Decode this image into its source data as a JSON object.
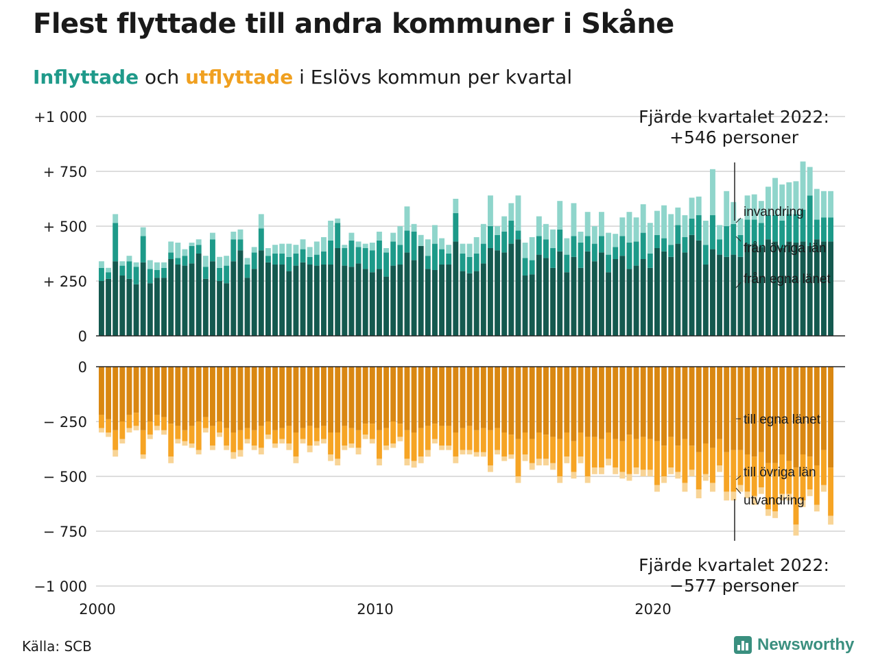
{
  "title": "Flest flyttade till andra kommuner i Skåne",
  "subtitle": {
    "in_word": "Inflyttade",
    "mid_word": "och",
    "out_word": "utflyttade",
    "rest": "i Eslövs kommun per kvartal"
  },
  "annotations": {
    "top_line1": "Fjärde kvartalet 2022:",
    "top_line2": "+546 personer",
    "bottom_line1": "Fjärde kvartalet 2022:",
    "bottom_line2": "−577 personer"
  },
  "source": "Källa: SCB",
  "logo": {
    "text": "Newsworthy",
    "icon": "newsworthy-chat-chart-icon"
  },
  "colors": {
    "in_egna": "#14594f",
    "in_ovriga": "#1d9a89",
    "in_invandring": "#8fd5cb",
    "out_egna": "#d98712",
    "out_ovriga": "#f6a424",
    "out_utvandring": "#f8d496",
    "grid": "#dddddd",
    "axis": "#222222"
  },
  "chart_data": {
    "type": "bar",
    "stacked": true,
    "grid": true,
    "x_tick_labels": [
      "2000",
      "2010",
      "2020"
    ],
    "x_range_years": [
      2000,
      2027
    ],
    "top_panel": {
      "ylim": [
        0,
        1000
      ],
      "y_tick_labels": [
        "0",
        "+  250",
        "+  500",
        "+  750",
        "+1 000"
      ],
      "y_ticks": [
        0,
        250,
        500,
        750,
        1000
      ],
      "series": [
        {
          "name": "från egna länet",
          "values": [
            250,
            260,
            340,
            275,
            260,
            235,
            335,
            240,
            265,
            265,
            350,
            325,
            320,
            330,
            375,
            260,
            340,
            250,
            240,
            340,
            390,
            265,
            305,
            390,
            335,
            325,
            325,
            295,
            320,
            335,
            325,
            320,
            325,
            325,
            400,
            320,
            315,
            330,
            305,
            290,
            305,
            270,
            320,
            325,
            380,
            345,
            410,
            305,
            300,
            325,
            325,
            430,
            295,
            285,
            295,
            330,
            400,
            390,
            380,
            420,
            440,
            275,
            280,
            370,
            355,
            310,
            385,
            290,
            360,
            310,
            385,
            340,
            380,
            290,
            350,
            365,
            305,
            320,
            350,
            310,
            400,
            385,
            360,
            420,
            380,
            460,
            435,
            325,
            395,
            370,
            360,
            370,
            360,
            420,
            420,
            405,
            440,
            430,
            400,
            430,
            425,
            430,
            410,
            440,
            430,
            430
          ]
        },
        {
          "name": "från övriga län",
          "values": [
            60,
            30,
            175,
            45,
            80,
            80,
            120,
            65,
            35,
            45,
            30,
            30,
            45,
            80,
            40,
            55,
            100,
            60,
            80,
            100,
            50,
            60,
            75,
            100,
            30,
            50,
            50,
            65,
            55,
            60,
            35,
            50,
            60,
            110,
            115,
            80,
            120,
            75,
            95,
            100,
            130,
            110,
            110,
            90,
            100,
            130,
            0,
            60,
            120,
            70,
            50,
            130,
            80,
            75,
            80,
            90,
            100,
            70,
            95,
            105,
            40,
            80,
            65,
            85,
            85,
            90,
            100,
            80,
            95,
            115,
            70,
            80,
            75,
            80,
            55,
            90,
            120,
            110,
            120,
            65,
            60,
            60,
            55,
            85,
            70,
            75,
            115,
            90,
            155,
            70,
            140,
            140,
            100,
            110,
            110,
            110,
            110,
            120,
            125,
            125,
            130,
            145,
            230,
            90,
            110,
            110
          ]
        },
        {
          "name": "invandring",
          "values": [
            30,
            20,
            40,
            20,
            25,
            20,
            40,
            40,
            35,
            25,
            50,
            70,
            30,
            15,
            25,
            50,
            30,
            50,
            45,
            35,
            45,
            30,
            25,
            65,
            35,
            40,
            45,
            60,
            40,
            45,
            45,
            60,
            65,
            90,
            20,
            15,
            35,
            25,
            20,
            35,
            40,
            20,
            40,
            85,
            110,
            35,
            50,
            75,
            85,
            50,
            40,
            65,
            45,
            60,
            75,
            90,
            140,
            40,
            70,
            80,
            160,
            70,
            105,
            90,
            70,
            85,
            130,
            75,
            150,
            50,
            110,
            80,
            110,
            100,
            60,
            85,
            140,
            110,
            130,
            140,
            110,
            150,
            140,
            80,
            100,
            95,
            85,
            110,
            210,
            65,
            160,
            100,
            75,
            110,
            115,
            100,
            130,
            170,
            165,
            145,
            150,
            220,
            130,
            140,
            120,
            120
          ]
        }
      ]
    },
    "bottom_panel": {
      "ylim": [
        -1000,
        0
      ],
      "y_tick_labels": [
        "0",
        "−  250",
        "−  500",
        "−  750",
        "−1 000"
      ],
      "y_ticks": [
        0,
        -250,
        -500,
        -750,
        -1000
      ],
      "series": [
        {
          "name": "till egna länet",
          "values": [
            -220,
            -240,
            -290,
            -250,
            -220,
            -210,
            -290,
            -250,
            -220,
            -230,
            -260,
            -270,
            -290,
            -270,
            -250,
            -230,
            -270,
            -250,
            -280,
            -300,
            -290,
            -280,
            -290,
            -270,
            -250,
            -290,
            -280,
            -270,
            -300,
            -280,
            -270,
            -280,
            -270,
            -300,
            -300,
            -270,
            -280,
            -290,
            -260,
            -260,
            -290,
            -280,
            -250,
            -260,
            -290,
            -300,
            -280,
            -270,
            -260,
            -270,
            -270,
            -300,
            -280,
            -270,
            -290,
            -280,
            -290,
            -280,
            -300,
            -310,
            -330,
            -300,
            -330,
            -300,
            -310,
            -320,
            -330,
            -300,
            -340,
            -300,
            -320,
            -320,
            -330,
            -300,
            -330,
            -340,
            -310,
            -330,
            -320,
            -330,
            -340,
            -360,
            -320,
            -360,
            -330,
            -360,
            -390,
            -350,
            -370,
            -330,
            -390,
            -380,
            -380,
            -400,
            -410,
            -390,
            -440,
            -440,
            -400,
            -430,
            -460,
            -400,
            -410,
            -450,
            -380,
            -460
          ]
        },
        {
          "name": "till övriga län",
          "values": [
            -60,
            -60,
            -90,
            -80,
            -60,
            -60,
            -110,
            -60,
            -50,
            -60,
            -150,
            -60,
            -50,
            -80,
            -130,
            -50,
            -90,
            -50,
            -80,
            -90,
            -90,
            -50,
            -70,
            -100,
            -60,
            -60,
            -50,
            -80,
            -110,
            -50,
            -90,
            -60,
            -60,
            -100,
            -120,
            -90,
            -70,
            -80,
            -50,
            -70,
            -130,
            -80,
            -100,
            -60,
            -130,
            -130,
            -130,
            -110,
            -70,
            -90,
            -90,
            -110,
            -100,
            -110,
            -100,
            -110,
            -160,
            -100,
            -110,
            -90,
            -170,
            -100,
            -110,
            -120,
            -110,
            -120,
            -170,
            -110,
            -140,
            -110,
            -180,
            -140,
            -130,
            -120,
            -130,
            -140,
            -180,
            -130,
            -150,
            -140,
            -200,
            -140,
            -140,
            -120,
            -200,
            -110,
            -170,
            -140,
            -160,
            -120,
            -180,
            -190,
            -160,
            -170,
            -180,
            -160,
            -210,
            -220,
            -180,
            -150,
            -260,
            -210,
            -150,
            -180,
            -160,
            -220
          ]
        },
        {
          "name": "utvandring",
          "values": [
            -20,
            -20,
            -30,
            -20,
            -20,
            -20,
            -20,
            -20,
            -20,
            -20,
            -30,
            -20,
            -20,
            -20,
            -20,
            -20,
            -20,
            -20,
            -20,
            -30,
            -30,
            -20,
            -20,
            -30,
            -20,
            -20,
            -20,
            -30,
            -30,
            -20,
            -30,
            -20,
            -20,
            -30,
            -30,
            -20,
            -20,
            -30,
            -20,
            -20,
            -30,
            -20,
            -20,
            -20,
            -30,
            -30,
            -30,
            -30,
            -20,
            -20,
            -20,
            -30,
            -20,
            -20,
            -20,
            -20,
            -30,
            -20,
            -20,
            -20,
            -30,
            -30,
            -30,
            -30,
            -30,
            -30,
            -30,
            -30,
            -30,
            -30,
            -30,
            -30,
            -30,
            -30,
            -30,
            -30,
            -30,
            -30,
            -30,
            -30,
            -30,
            -30,
            -30,
            -30,
            -40,
            -30,
            -40,
            -30,
            -40,
            -30,
            -40,
            -40,
            -30,
            -30,
            -40,
            -30,
            -30,
            -30,
            -30,
            -30,
            -50,
            -30,
            -30,
            -30,
            -30,
            -40
          ]
        }
      ]
    },
    "series_labels": {
      "invandring": "invandring",
      "fran_ovriga": "från övriga län",
      "fran_egna": "från egna länet",
      "till_egna": "till egna länet",
      "till_ovriga": "till övriga län",
      "utvandring": "utvandring"
    }
  }
}
